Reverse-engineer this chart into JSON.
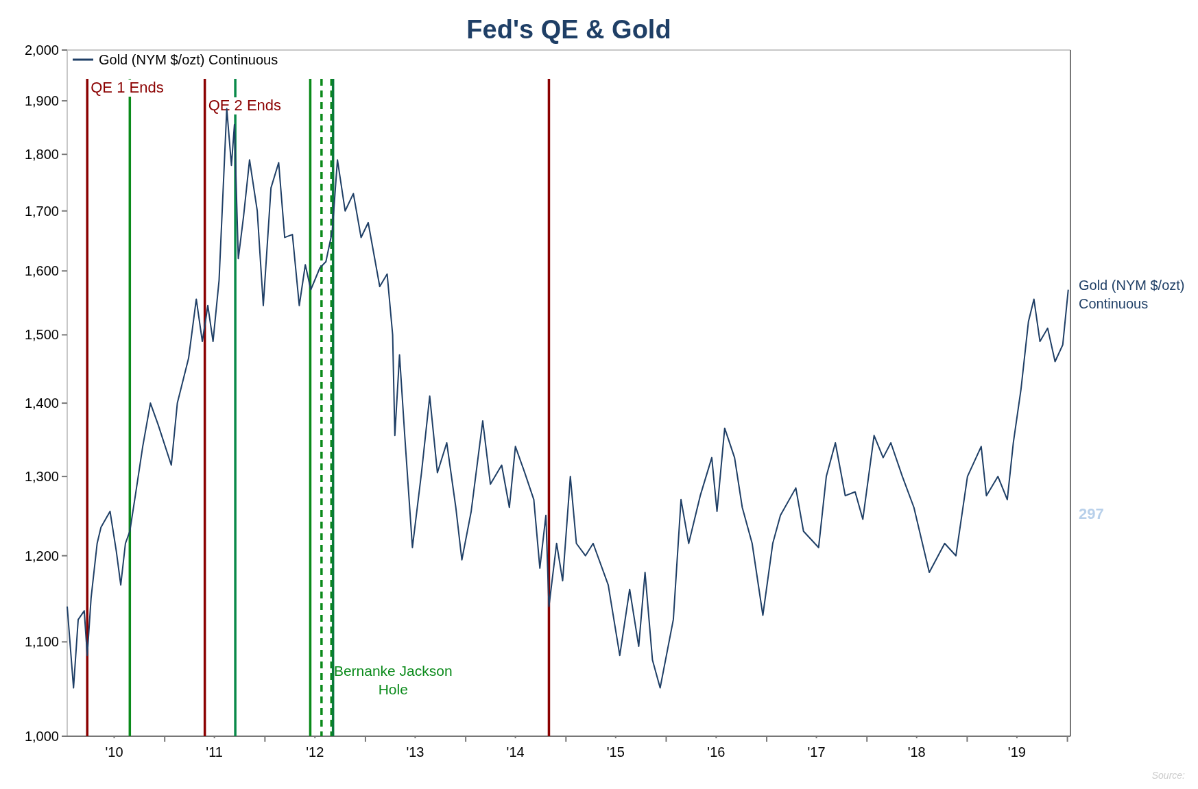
{
  "chart_data": {
    "type": "line",
    "title": "Fed's QE & Gold",
    "log": "y",
    "legend": "top left",
    "grid": false,
    "xlim": [
      "2010-01-11",
      "2020-01-12"
    ],
    "xticks": [
      {
        "value": "2010-07-01",
        "label": "'10"
      },
      {
        "value": "2011-01-01",
        "label": null
      },
      {
        "value": "2011-07-01",
        "label": "'11"
      },
      {
        "value": "2012-01-01",
        "label": null
      },
      {
        "value": "2012-07-01",
        "label": "'12"
      },
      {
        "value": "2013-01-01",
        "label": null
      },
      {
        "value": "2013-07-01",
        "label": "'13"
      },
      {
        "value": "2014-01-01",
        "label": null
      },
      {
        "value": "2014-07-01",
        "label": "'14"
      },
      {
        "value": "2015-01-01",
        "label": null
      },
      {
        "value": "2015-07-01",
        "label": "'15"
      },
      {
        "value": "2016-01-01",
        "label": null
      },
      {
        "value": "2016-07-01",
        "label": "'16"
      },
      {
        "value": "2017-01-01",
        "label": null
      },
      {
        "value": "2017-07-01",
        "label": "'17"
      },
      {
        "value": "2018-01-01",
        "label": null
      },
      {
        "value": "2018-07-01",
        "label": "'18"
      },
      {
        "value": "2019-01-01",
        "label": null
      },
      {
        "value": "2019-07-01",
        "label": "'19"
      },
      {
        "value": "2020-01-01",
        "label": null
      }
    ],
    "ylim": [
      1000,
      2000
    ],
    "yticks": [
      {
        "value": 1000,
        "label": "1,000"
      },
      {
        "value": 1100,
        "label": "1,100"
      },
      {
        "value": 1200,
        "label": "1,200"
      },
      {
        "value": 1300,
        "label": "1,300"
      },
      {
        "value": 1400,
        "label": "1,400"
      },
      {
        "value": 1500,
        "label": "1,500"
      },
      {
        "value": 1600,
        "label": "1,600"
      },
      {
        "value": 1700,
        "label": "1,700"
      },
      {
        "value": 1800,
        "label": "1,800"
      },
      {
        "value": 1900,
        "label": "1,900"
      },
      {
        "value": 2000,
        "label": "2,000"
      }
    ],
    "x": [
      "2010-01-11",
      "2010-02-03",
      "2010-02-20",
      "2010-03-14",
      "2010-03-25",
      "2010-04-08",
      "2010-04-30",
      "2010-05-14",
      "2010-06-16",
      "2010-07-09",
      "2010-07-25",
      "2010-08-11",
      "2010-08-27",
      "2010-09-16",
      "2010-10-13",
      "2010-11-10",
      "2010-12-08",
      "2011-01-25",
      "2011-02-16",
      "2011-03-29",
      "2011-04-26",
      "2011-05-18",
      "2011-06-07",
      "2011-06-26",
      "2011-07-18",
      "2011-08-15",
      "2011-09-01",
      "2011-09-12",
      "2011-09-26",
      "2011-10-15",
      "2011-11-06",
      "2011-12-04",
      "2011-12-26",
      "2012-01-23",
      "2012-02-20",
      "2012-03-13",
      "2012-04-10",
      "2012-05-05",
      "2012-05-27",
      "2012-06-16",
      "2012-07-19",
      "2012-08-10",
      "2012-09-02",
      "2012-09-21",
      "2012-10-19",
      "2012-11-18",
      "2012-12-16",
      "2013-01-11",
      "2013-02-22",
      "2013-03-21",
      "2013-04-10",
      "2013-04-18",
      "2013-05-05",
      "2013-05-24",
      "2013-06-21",
      "2013-07-24",
      "2013-08-23",
      "2013-09-20",
      "2013-10-24",
      "2013-11-26",
      "2013-12-18",
      "2014-01-21",
      "2014-03-04",
      "2014-04-01",
      "2014-05-12",
      "2014-06-09",
      "2014-07-01",
      "2014-08-04",
      "2014-09-06",
      "2014-09-28",
      "2014-10-20",
      "2014-10-31",
      "2014-11-28",
      "2014-12-20",
      "2015-01-17",
      "2015-02-08",
      "2015-03-13",
      "2015-04-10",
      "2015-06-04",
      "2015-07-16",
      "2015-08-21",
      "2015-09-23",
      "2015-10-16",
      "2015-11-12",
      "2015-12-10",
      "2016-01-27",
      "2016-02-24",
      "2016-03-23",
      "2016-05-04",
      "2016-06-15",
      "2016-07-04",
      "2016-08-01",
      "2016-09-06",
      "2016-10-04",
      "2016-11-09",
      "2016-12-18",
      "2017-01-23",
      "2017-02-20",
      "2017-04-17",
      "2017-05-15",
      "2017-07-09",
      "2017-08-06",
      "2017-09-08",
      "2017-10-14",
      "2017-11-19",
      "2017-12-17",
      "2018-01-27",
      "2018-03-01",
      "2018-03-29",
      "2018-05-10",
      "2018-06-21",
      "2018-08-16",
      "2018-10-11",
      "2018-11-21",
      "2019-01-02",
      "2019-02-21",
      "2019-03-12",
      "2019-04-23",
      "2019-05-27",
      "2019-06-18",
      "2019-07-16",
      "2019-08-12",
      "2019-09-01",
      "2019-09-23",
      "2019-10-21",
      "2019-11-17",
      "2019-12-15",
      "2020-01-04"
    ],
    "series": [
      {
        "name": "Gold (NYM $/ozt) Continuous",
        "color": "#1f3f66",
        "values": [
          1140,
          1050,
          1125,
          1135,
          1085,
          1150,
          1215,
          1235,
          1255,
          1205,
          1165,
          1215,
          1230,
          1275,
          1340,
          1400,
          1370,
          1315,
          1400,
          1465,
          1555,
          1490,
          1545,
          1490,
          1585,
          1885,
          1780,
          1855,
          1620,
          1690,
          1790,
          1700,
          1545,
          1740,
          1785,
          1655,
          1660,
          1545,
          1610,
          1570,
          1605,
          1615,
          1665,
          1790,
          1700,
          1730,
          1655,
          1680,
          1575,
          1595,
          1500,
          1355,
          1470,
          1355,
          1210,
          1305,
          1410,
          1305,
          1345,
          1260,
          1195,
          1255,
          1375,
          1290,
          1315,
          1260,
          1340,
          1305,
          1270,
          1185,
          1250,
          1140,
          1215,
          1170,
          1300,
          1215,
          1200,
          1215,
          1165,
          1085,
          1160,
          1095,
          1180,
          1080,
          1050,
          1125,
          1270,
          1215,
          1275,
          1325,
          1255,
          1365,
          1325,
          1260,
          1215,
          1130,
          1215,
          1250,
          1285,
          1230,
          1210,
          1300,
          1345,
          1275,
          1280,
          1245,
          1355,
          1325,
          1345,
          1300,
          1260,
          1180,
          1215,
          1200,
          1300,
          1340,
          1275,
          1300,
          1270,
          1345,
          1420,
          1520,
          1555,
          1490,
          1510,
          1460,
          1485,
          1570
        ]
      }
    ],
    "ref_lines": [
      {
        "axis": "x",
        "value": "2010-03-25",
        "label": "QE 1 Ends",
        "color": "#8b0000",
        "line_style": "solid"
      },
      {
        "axis": "x",
        "value": "2010-08-27",
        "label": null,
        "color": "#0a8a1a",
        "line_style": "solid"
      },
      {
        "axis": "x",
        "value": "2011-05-27",
        "label": "QE 2 Ends",
        "color": "#8b0000",
        "line_style": "solid"
      },
      {
        "axis": "x",
        "value": "2011-09-15",
        "label": null,
        "color": "#0a8a4a",
        "line_style": "solid"
      },
      {
        "axis": "x",
        "value": "2012-06-14",
        "label": null,
        "color": "#0a8a1a",
        "line_style": "solid"
      },
      {
        "axis": "x",
        "value": "2012-07-25",
        "label": null,
        "color": "#0a8a1a",
        "line_style": "dashed"
      },
      {
        "axis": "x",
        "value": "2012-08-30",
        "label": "Bernanke Jackson Hole",
        "color": "#0a8a1a",
        "line_style": "dashed"
      },
      {
        "axis": "x",
        "value": "2012-09-05",
        "label": null,
        "color": "#0a7a3a",
        "line_style": "solid"
      },
      {
        "axis": "x",
        "value": "2014-10-31",
        "label": null,
        "color": "#8b0000",
        "line_style": "solid"
      }
    ],
    "annotations": [
      "297",
      "Source:"
    ]
  }
}
